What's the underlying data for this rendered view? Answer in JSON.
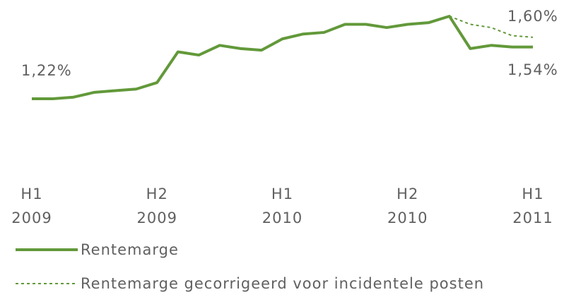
{
  "chart_data": {
    "type": "line",
    "categories": [
      "H1 2009",
      null,
      null,
      null,
      null,
      null,
      "H2 2009",
      null,
      null,
      null,
      null,
      null,
      "H1 2010",
      null,
      null,
      null,
      null,
      null,
      "H2 2010",
      null,
      null,
      null,
      null,
      null,
      "H1 2011"
    ],
    "series": [
      {
        "name": "Rentemarge",
        "color": "#62993a",
        "style": "solid",
        "values": [
          1.22,
          1.22,
          1.23,
          1.26,
          1.27,
          1.28,
          1.32,
          1.51,
          1.49,
          1.55,
          1.53,
          1.52,
          1.59,
          1.62,
          1.63,
          1.68,
          1.68,
          1.66,
          1.68,
          1.69,
          1.73,
          1.53,
          1.55,
          1.54,
          1.54
        ],
        "value_labels": [
          "1,22%",
          null,
          null,
          null,
          null,
          null,
          null,
          null,
          null,
          null,
          null,
          null,
          null,
          null,
          null,
          null,
          null,
          null,
          null,
          null,
          null,
          null,
          null,
          null,
          "1,54%"
        ]
      },
      {
        "name": "Rentemarge gecorrigeerd voor incidentele posten",
        "color": "#62993a",
        "style": "dotted",
        "values": [
          null,
          null,
          null,
          null,
          null,
          null,
          null,
          null,
          null,
          null,
          null,
          null,
          null,
          null,
          null,
          null,
          null,
          null,
          null,
          null,
          1.73,
          1.68,
          1.66,
          1.61,
          1.6
        ],
        "value_labels": [
          null,
          null,
          null,
          null,
          null,
          null,
          null,
          null,
          null,
          null,
          null,
          null,
          null,
          null,
          null,
          null,
          null,
          null,
          null,
          null,
          null,
          null,
          null,
          null,
          "1,60%"
        ]
      }
    ]
  }
}
